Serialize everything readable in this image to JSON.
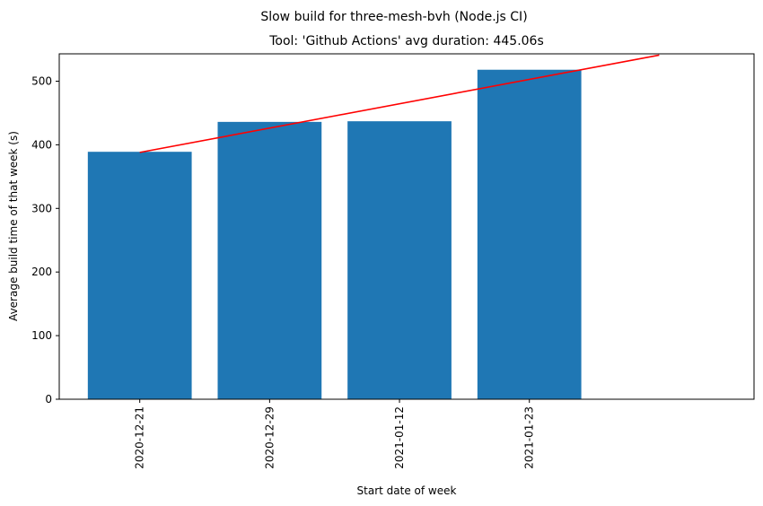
{
  "chart_data": {
    "type": "bar",
    "suptitle": "Slow build for three-mesh-bvh (Node.js CI)",
    "title": "Tool: 'Github Actions' avg duration: 445.06s",
    "xlabel": "Start date of week",
    "ylabel": "Average build time of that week (s)",
    "categories": [
      "2020-12-21",
      "2020-12-29",
      "2021-01-12",
      "2021-01-23"
    ],
    "values": [
      389,
      436,
      437,
      518
    ],
    "yticks": [
      0,
      100,
      200,
      300,
      400,
      500
    ],
    "ylim": [
      0,
      543
    ],
    "bar_color": "#1f77b4",
    "trend": {
      "color": "#ff0000",
      "from": {
        "x": "2020-12-21",
        "y": 388
      },
      "to": {
        "x": "2021-02-01",
        "y": 541
      }
    },
    "grid": false,
    "legend": "none"
  }
}
